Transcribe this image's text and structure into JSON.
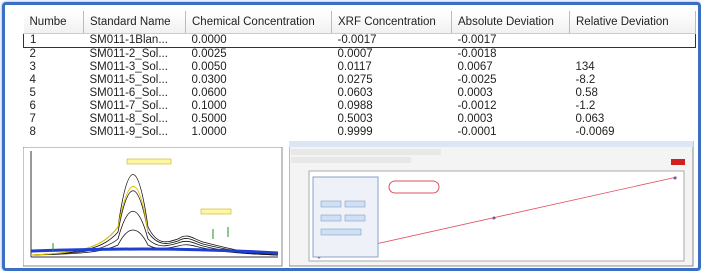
{
  "table": {
    "columns": [
      "Numbe",
      "Standard Name",
      "Chemical Concentration",
      "XRF Concentration",
      "Absolute Deviation",
      "Relative Deviation"
    ],
    "rows": [
      [
        "1",
        "SM011-1Blan...",
        "0.0000",
        "-0.0017",
        "-0.0017",
        null
      ],
      [
        "2",
        "SM011-2_Sol...",
        "0.0025",
        "0.0007",
        "-0.0018",
        null
      ],
      [
        "3",
        "SM011-3_Sol...",
        "0.0050",
        "0.0117",
        "0.0067",
        "134"
      ],
      [
        "4",
        "SM011-5_Sol...",
        "0.0300",
        "0.0275",
        "-0.0025",
        "-8.2"
      ],
      [
        "5",
        "SM011-6_Sol...",
        "0.0600",
        "0.0603",
        "0.0003",
        "0.58"
      ],
      [
        "6",
        "SM011-7_Sol...",
        "0.1000",
        "0.0988",
        "-0.0012",
        "-1.2"
      ],
      [
        "7",
        "SM011-8_Sol...",
        "0.5000",
        "0.5003",
        "0.0003",
        "0.063"
      ],
      [
        "8",
        "SM011-9_Sol...",
        "1.0000",
        "0.9999",
        "-0.0001",
        "-0.0069"
      ]
    ]
  }
}
